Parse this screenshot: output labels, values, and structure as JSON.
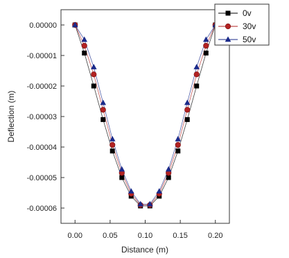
{
  "chart_data": {
    "type": "line",
    "title": "",
    "xlabel": "Distance (m)",
    "ylabel": "Deflection (m)",
    "xlim": [
      -0.02,
      0.22
    ],
    "ylim": [
      -6.5e-05,
      5e-06
    ],
    "x_ticks": [
      0.0,
      0.05,
      0.1,
      0.15,
      0.2
    ],
    "x_tick_labels": [
      "0.00",
      "0.05",
      "0.10",
      "0.15",
      "0.20"
    ],
    "y_ticks": [
      0,
      -1e-05,
      -2e-05,
      -3e-05,
      -4e-05,
      -5e-05,
      -6e-05
    ],
    "y_tick_labels": [
      "0.00000",
      "-0.00001",
      "-0.00002",
      "-0.00003",
      "-0.00004",
      "-0.00005",
      "-0.00006"
    ],
    "grid": false,
    "legend_position": "top-right",
    "x": [
      0.0,
      0.0133,
      0.0267,
      0.04,
      0.0533,
      0.0667,
      0.08,
      0.0933,
      0.1067,
      0.12,
      0.1333,
      0.1467,
      0.16,
      0.1733,
      0.1867,
      0.2
    ],
    "series": [
      {
        "name": "0v",
        "color": "#000000",
        "marker": "square",
        "values": [
          0.0,
          -9.2e-06,
          -2e-05,
          -3.1e-05,
          -4.13e-05,
          -5e-05,
          -5.61e-05,
          -5.93e-05,
          -5.93e-05,
          -5.61e-05,
          -5e-05,
          -4.13e-05,
          -3.1e-05,
          -2e-05,
          -9.2e-06,
          0.0
        ]
      },
      {
        "name": "30v",
        "color": "#b22222",
        "marker": "circle",
        "values": [
          0.0,
          -6.8e-06,
          -1.62e-05,
          -2.78e-05,
          -3.93e-05,
          -4.85e-05,
          -5.53e-05,
          -5.9e-05,
          -5.9e-05,
          -5.53e-05,
          -4.85e-05,
          -3.93e-05,
          -2.78e-05,
          -1.62e-05,
          -6.8e-06,
          0.0
        ]
      },
      {
        "name": "50v",
        "color": "#1a2a8a",
        "marker": "triangle",
        "values": [
          0.0,
          -4.8e-06,
          -1.38e-05,
          -2.55e-05,
          -3.74e-05,
          -4.73e-05,
          -5.45e-05,
          -5.87e-05,
          -5.87e-05,
          -5.45e-05,
          -4.73e-05,
          -3.74e-05,
          -2.55e-05,
          -1.38e-05,
          -4.8e-06,
          0.0
        ]
      }
    ]
  }
}
